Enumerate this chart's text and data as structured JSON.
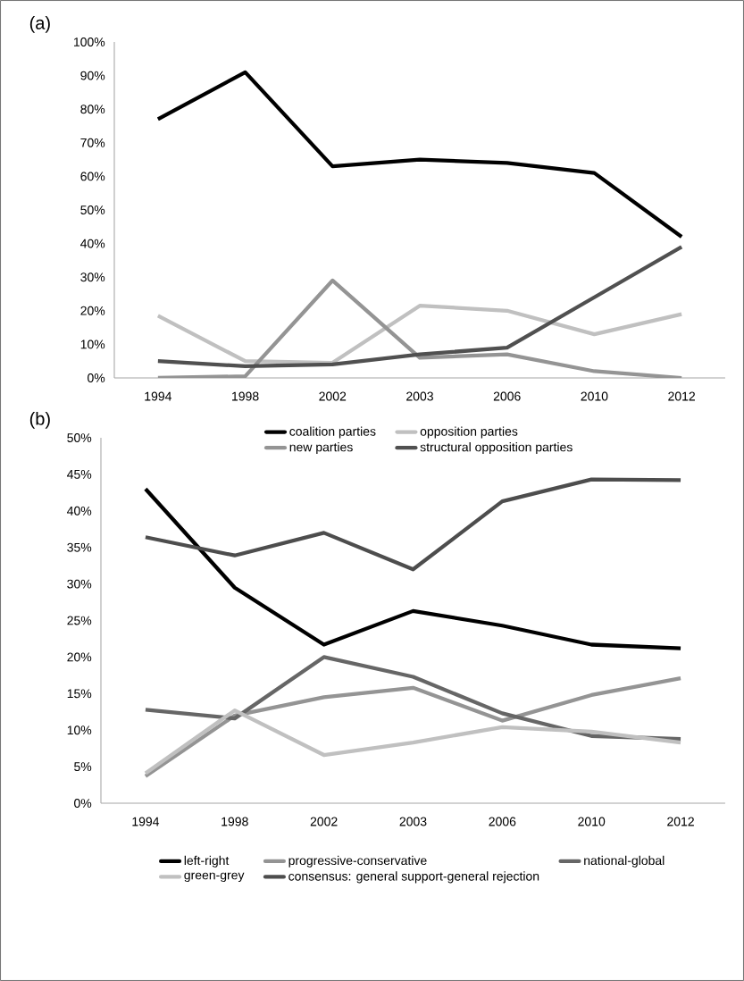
{
  "chart_data": [
    {
      "type": "line",
      "title": "(a)",
      "categories": [
        "1994",
        "1998",
        "2002",
        "2003",
        "2006",
        "2010",
        "2012"
      ],
      "series": [
        {
          "name": "coalition  parties",
          "color": "#000000",
          "values": [
            77,
            91,
            63,
            65,
            64,
            61,
            42
          ]
        },
        {
          "name": "opposition parties",
          "color": "#c0c0c0",
          "values": [
            18.5,
            5,
            4.5,
            21.5,
            20,
            13,
            19
          ]
        },
        {
          "name": "new parties",
          "color": "#949494",
          "values": [
            0,
            0.5,
            29,
            6,
            7,
            2,
            0
          ]
        },
        {
          "name": "structural opposition parties",
          "color": "#505050",
          "values": [
            5,
            3.5,
            4,
            7,
            9,
            24,
            39
          ]
        }
      ],
      "ylim": [
        0,
        100
      ],
      "yticks": [
        {
          "value": 0,
          "label": "0%"
        },
        {
          "value": 10,
          "label": "10%"
        },
        {
          "value": 20,
          "label": "20%"
        },
        {
          "value": 30,
          "label": "30%"
        },
        {
          "value": 40,
          "label": "40%"
        },
        {
          "value": 50,
          "label": "50%"
        },
        {
          "value": 60,
          "label": "60%"
        },
        {
          "value": 70,
          "label": "70%"
        },
        {
          "value": 80,
          "label": "80%"
        },
        {
          "value": 90,
          "label": "90%"
        },
        {
          "value": 100,
          "label": "100%"
        }
      ],
      "legend": "bottom",
      "grid": false,
      "marker": "none",
      "line_style": "solid"
    },
    {
      "type": "line",
      "title": "(b)",
      "categories": [
        "1994",
        "1998",
        "2002",
        "2003",
        "2006",
        "2010",
        "2012"
      ],
      "series": [
        {
          "name": "left-right",
          "color": "#000000",
          "values": [
            43,
            29.5,
            21.7,
            26.3,
            24.3,
            21.7,
            21.2
          ]
        },
        {
          "name": "progressive-conservative",
          "color": "#949494",
          "values": [
            3.7,
            12,
            14.5,
            15.8,
            11.3,
            14.8,
            17.1
          ]
        },
        {
          "name": "national-global",
          "color": "#666666",
          "values": [
            12.8,
            11.6,
            20,
            17.3,
            12.3,
            9.2,
            8.8
          ]
        },
        {
          "name": "green-grey",
          "color": "#c0c0c0",
          "values": [
            4.1,
            12.7,
            6.6,
            8.3,
            10.4,
            9.8,
            8.3
          ]
        },
        {
          "name": "consensus: general support-general rejection",
          "color": "#4d4d4d",
          "values": [
            36.4,
            33.9,
            37,
            32,
            41.3,
            44.3,
            44.2
          ]
        }
      ],
      "ylim": [
        0,
        50
      ],
      "yticks": [
        {
          "value": 0,
          "label": "0%"
        },
        {
          "value": 5,
          "label": "5%"
        },
        {
          "value": 10,
          "label": "10%"
        },
        {
          "value": 15,
          "label": "15%"
        },
        {
          "value": 20,
          "label": "20%"
        },
        {
          "value": 25,
          "label": "25%"
        },
        {
          "value": 30,
          "label": "30%"
        },
        {
          "value": 35,
          "label": "35%"
        },
        {
          "value": 40,
          "label": "40%"
        },
        {
          "value": 45,
          "label": "45%"
        },
        {
          "value": 50,
          "label": "50%"
        }
      ],
      "legend": "bottom",
      "grid": false,
      "marker": "none",
      "line_style": "solid"
    }
  ]
}
